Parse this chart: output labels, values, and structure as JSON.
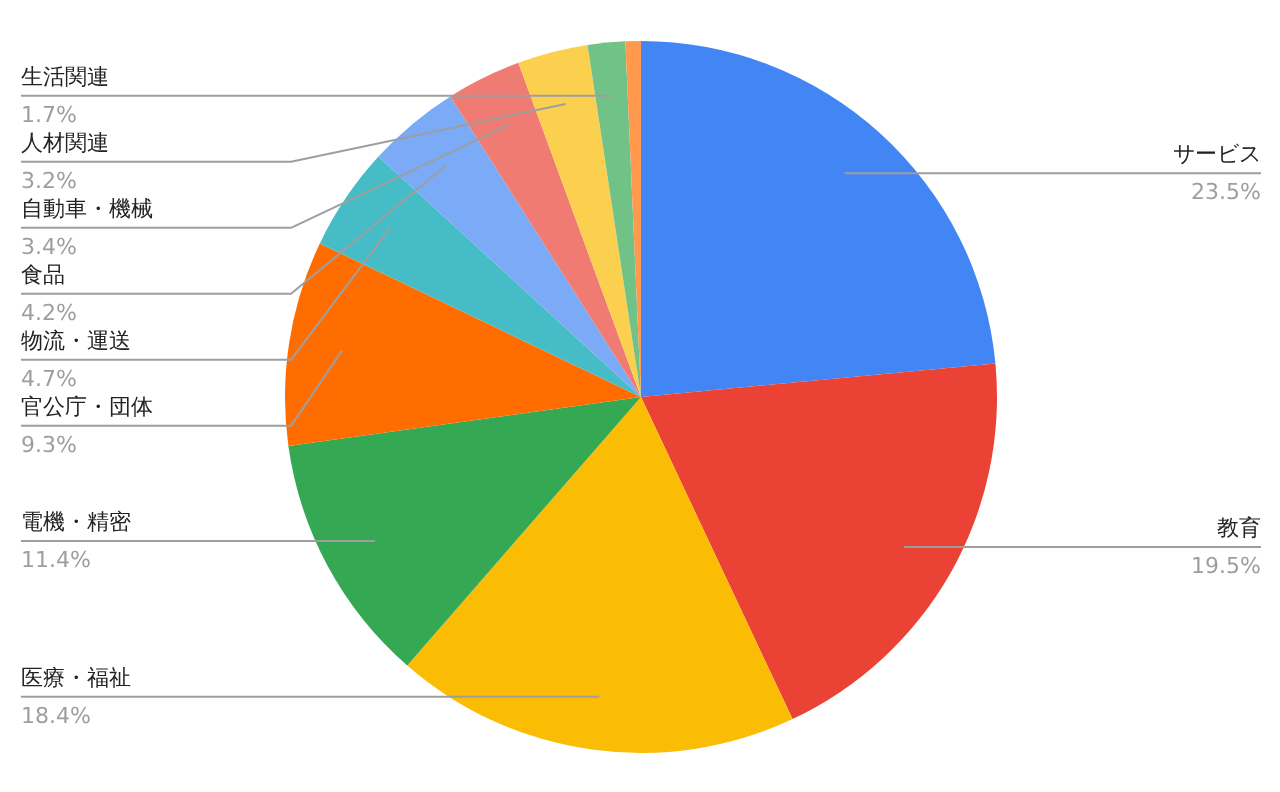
{
  "chart_data": {
    "type": "pie",
    "categories": [
      "サービス",
      "教育",
      "医療・福祉",
      "電機・精密",
      "官公庁・団体",
      "物流・運送",
      "食品",
      "自動車・機械",
      "人材関連",
      "生活関連",
      null
    ],
    "values": [
      23.5,
      19.5,
      18.4,
      11.4,
      9.3,
      4.7,
      4.2,
      3.4,
      3.2,
      1.7,
      0.7
    ],
    "value_labels": [
      "23.5%",
      "19.5%",
      "18.4%",
      "11.4%",
      "9.3%",
      "4.7%",
      "4.2%",
      "3.4%",
      "3.2%",
      "1.7%",
      null
    ],
    "colors": [
      "#4285f4",
      "#ea4335",
      "#fbbc04",
      "#34a853",
      "#ff6d01",
      "#46bdc6",
      "#7baaf7",
      "#f07b72",
      "#fcd04f",
      "#71c287",
      "#ff994d"
    ]
  }
}
